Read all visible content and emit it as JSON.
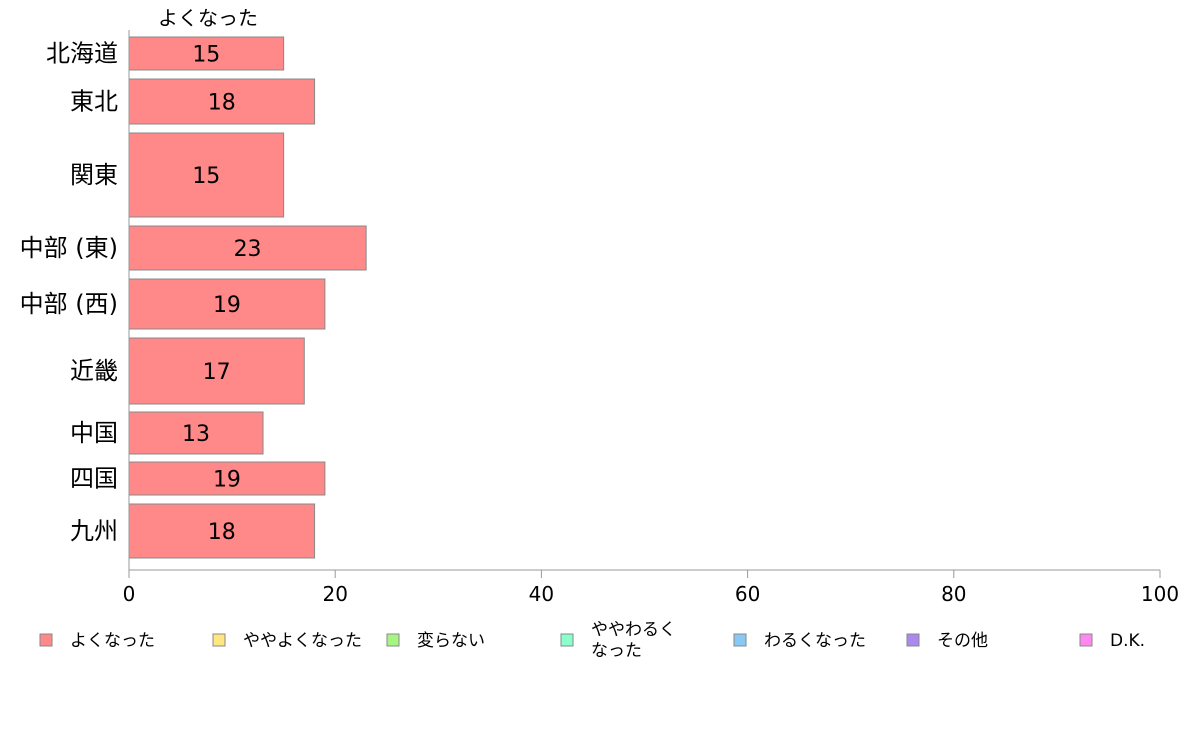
{
  "chart_data": {
    "type": "bar",
    "orientation": "horizontal",
    "column_header": "よくなった",
    "categories": [
      "北海道",
      "東北",
      "関東",
      "中部 (東)",
      "中部 (西)",
      "近畿",
      "中国",
      "四国",
      "九州"
    ],
    "series": [
      {
        "name": "よくなった",
        "values": [
          15,
          18,
          15,
          23,
          19,
          17,
          13,
          19,
          18
        ],
        "color": "#ff8888"
      }
    ],
    "xlim": [
      0,
      100
    ],
    "xticks": [
      "0",
      "20",
      "40",
      "60",
      "80",
      "100"
    ],
    "grid": false,
    "legend": {
      "placement": "bottom",
      "items": [
        {
          "label": "よくなった",
          "color": "#ff8888"
        },
        {
          "label": "ややよくなった",
          "color": "#ffe680"
        },
        {
          "label": "変らない",
          "color": "#a6f580"
        },
        {
          "label": "ややわるく\nなった",
          "color": "#88ffcc"
        },
        {
          "label": "わるくなった",
          "color": "#88c8f5"
        },
        {
          "label": "その他",
          "color": "#aa88ee"
        },
        {
          "label": "D.K.",
          "color": "#ff88ee"
        }
      ]
    }
  }
}
